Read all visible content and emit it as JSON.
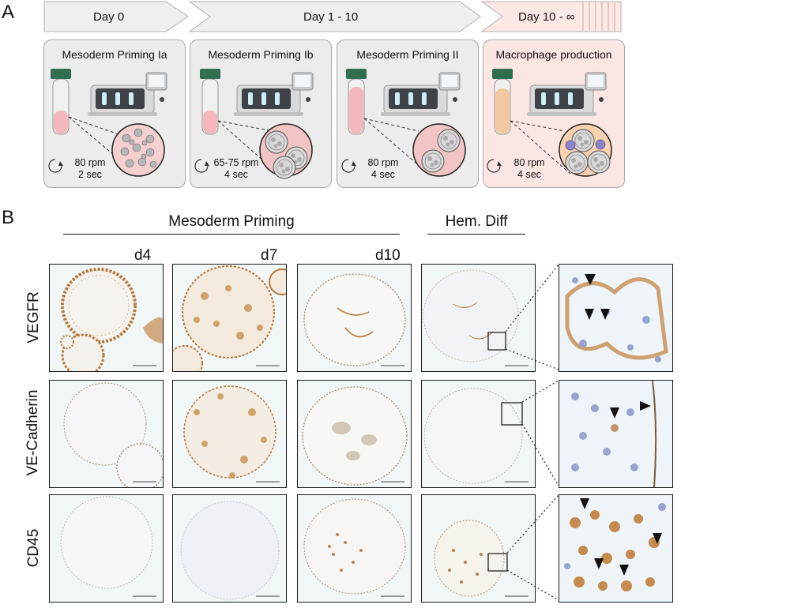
{
  "panel_a": {
    "letter": "A",
    "timeline": [
      {
        "label": "Day 0"
      },
      {
        "label": "Day 1 - 10"
      },
      {
        "label": "Day 10 - ∞"
      }
    ],
    "stages": [
      {
        "title": "Mesoderm Priming Ia",
        "rpm": "80 rpm",
        "sec": "2 sec"
      },
      {
        "title": "Mesoderm Priming Ib",
        "rpm": "65-75 rpm",
        "sec": "4 sec"
      },
      {
        "title": "Mesoderm Priming II",
        "rpm": "80 rpm",
        "sec": "4 sec"
      },
      {
        "title": "Macrophage production",
        "rpm": "80 rpm",
        "sec": "4 sec"
      }
    ]
  },
  "panel_b": {
    "letter": "B",
    "group_mesoderm": "Mesoderm Priming",
    "group_hem": "Hem. Diff",
    "days": [
      "d4",
      "d7",
      "d10"
    ],
    "markers": [
      "VEGFR",
      "VE-Cadherin",
      "CD45"
    ]
  },
  "colors": {
    "stain_brown": "#b5773a",
    "hematoxylin_blue": "#8a96c8",
    "cap_green": "#2f6e4e",
    "tube_pink": "#f4b8bc",
    "tube_orange": "#f5c79e",
    "cell_purple": "#8e84c8"
  }
}
